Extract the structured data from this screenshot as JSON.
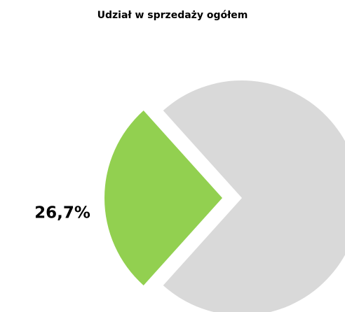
{
  "chart_data": {
    "type": "pie",
    "title": "Udział w sprzedaży ogółem",
    "values": [
      26.7,
      73.3
    ],
    "value_labels": [
      "26,7%",
      null
    ],
    "colors": [
      "#92d050",
      "#d9d9d9"
    ]
  }
}
